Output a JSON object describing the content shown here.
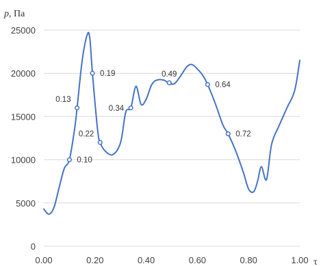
{
  "chart_data": {
    "type": "line",
    "y_title": {
      "symbol": "p",
      "unit": ", Па"
    },
    "x_title": "τ",
    "xlim": [
      0,
      1
    ],
    "ylim": [
      0,
      25000
    ],
    "x_ticks": [
      {
        "value": 0,
        "label": "0.00"
      },
      {
        "value": 0.2,
        "label": "0.20"
      },
      {
        "value": 0.4,
        "label": "0.40"
      },
      {
        "value": 0.6,
        "label": "0.60"
      },
      {
        "value": 0.8,
        "label": "0.80"
      },
      {
        "value": 1.0,
        "label": "1.00"
      }
    ],
    "y_ticks": [
      {
        "value": 0,
        "label": "0"
      },
      {
        "value": 5000,
        "label": "5000"
      },
      {
        "value": 10000,
        "label": "10000"
      },
      {
        "value": 15000,
        "label": "15000"
      },
      {
        "value": 20000,
        "label": "20000"
      },
      {
        "value": 25000,
        "label": "25000"
      }
    ],
    "grid": true,
    "line_color": "#4472c4",
    "series": [
      {
        "x": [
          0,
          0.02,
          0.04,
          0.06,
          0.08,
          0.1,
          0.12,
          0.13,
          0.15,
          0.17,
          0.18,
          0.19,
          0.21,
          0.22,
          0.24,
          0.27,
          0.3,
          0.32,
          0.34,
          0.36,
          0.38,
          0.4,
          0.42,
          0.44,
          0.47,
          0.49,
          0.51,
          0.53,
          0.56,
          0.58,
          0.6,
          0.62,
          0.64,
          0.67,
          0.7,
          0.72,
          0.75,
          0.78,
          0.8,
          0.82,
          0.835,
          0.85,
          0.87,
          0.89,
          0.92,
          0.95,
          0.98,
          1.0
        ],
        "values": [
          4300,
          3700,
          4500,
          6800,
          9000,
          10000,
          13500,
          16000,
          21500,
          24500,
          24000,
          20000,
          13500,
          12000,
          11000,
          10600,
          12000,
          15500,
          16000,
          18500,
          16400,
          17000,
          18600,
          19200,
          19200,
          18800,
          18800,
          19500,
          20800,
          21000,
          20500,
          19800,
          18700,
          16500,
          14000,
          13000,
          11000,
          8500,
          6600,
          6300,
          7500,
          9200,
          7700,
          11800,
          14000,
          16000,
          18000,
          21500
        ]
      }
    ],
    "points": [
      {
        "x": 0.1,
        "y": 10000,
        "label": "0.10",
        "pos": "right"
      },
      {
        "x": 0.13,
        "y": 16000,
        "label": "0.13",
        "pos": "upper-left"
      },
      {
        "x": 0.19,
        "y": 20000,
        "label": "0.19",
        "pos": "right"
      },
      {
        "x": 0.22,
        "y": 12000,
        "label": "0.22",
        "pos": "upper-left"
      },
      {
        "x": 0.34,
        "y": 16000,
        "label": "0.34",
        "pos": "left"
      },
      {
        "x": 0.49,
        "y": 18900,
        "label": "0.49",
        "pos": "above"
      },
      {
        "x": 0.64,
        "y": 18700,
        "label": "0.64",
        "pos": "right"
      },
      {
        "x": 0.72,
        "y": 13000,
        "label": "0.72",
        "pos": "right"
      }
    ]
  }
}
